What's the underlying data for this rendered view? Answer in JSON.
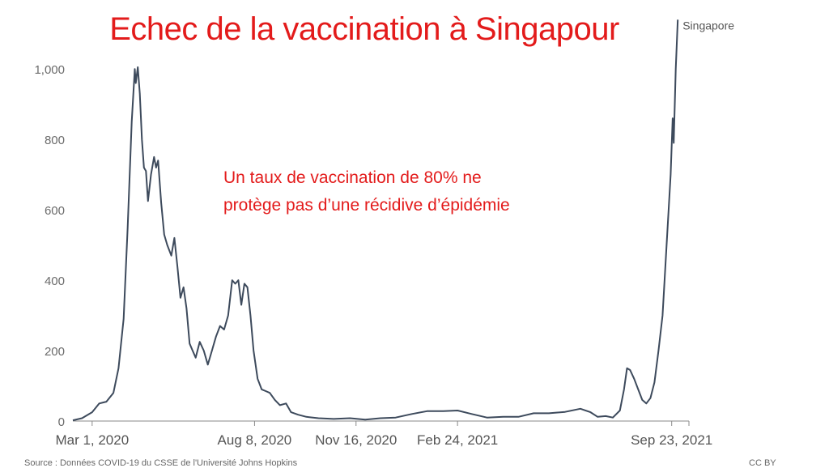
{
  "title": "Echec de la vaccination à Singapour",
  "annotation": {
    "line1": "Un taux de vaccination de 80% ne",
    "line2": "protège pas d’une récidive d’épidémie"
  },
  "footer": {
    "source": "Source : Données COVID-19 du CSSE de l'Université Johns Hopkins",
    "credit": "CC BY"
  },
  "chart_data": {
    "type": "line",
    "title": "Echec de la vaccination à Singapour",
    "xlabel": "",
    "ylabel": "",
    "ylim": [
      0,
      1150
    ],
    "yticks": [
      0,
      200,
      400,
      600,
      800,
      1000
    ],
    "ytick_labels": [
      "0",
      "200",
      "400",
      "600",
      "800",
      "1,000"
    ],
    "xlim": [
      "2020-02-11",
      "2021-10-10"
    ],
    "xticks": [
      "2020-03-01",
      "2020-08-08",
      "2020-11-16",
      "2021-02-24",
      "2021-09-23"
    ],
    "xtick_labels": [
      "Mar 1, 2020",
      "Aug 8, 2020",
      "Nov 16, 2020",
      "Feb 24, 2021",
      "Sep 23, 2021"
    ],
    "grid": false,
    "series": [
      {
        "name": "Singapore",
        "color": "#3d4a5c",
        "points": [
          [
            "2020-02-11",
            2
          ],
          [
            "2020-02-20",
            8
          ],
          [
            "2020-03-01",
            25
          ],
          [
            "2020-03-08",
            50
          ],
          [
            "2020-03-15",
            55
          ],
          [
            "2020-03-22",
            80
          ],
          [
            "2020-03-27",
            150
          ],
          [
            "2020-04-01",
            290
          ],
          [
            "2020-04-05",
            550
          ],
          [
            "2020-04-09",
            850
          ],
          [
            "2020-04-12",
            1000
          ],
          [
            "2020-04-13",
            960
          ],
          [
            "2020-04-15",
            1005
          ],
          [
            "2020-04-17",
            930
          ],
          [
            "2020-04-19",
            800
          ],
          [
            "2020-04-21",
            720
          ],
          [
            "2020-04-23",
            710
          ],
          [
            "2020-04-25",
            625
          ],
          [
            "2020-04-28",
            700
          ],
          [
            "2020-05-01",
            750
          ],
          [
            "2020-05-03",
            720
          ],
          [
            "2020-05-05",
            740
          ],
          [
            "2020-05-08",
            620
          ],
          [
            "2020-05-11",
            530
          ],
          [
            "2020-05-14",
            500
          ],
          [
            "2020-05-18",
            470
          ],
          [
            "2020-05-21",
            520
          ],
          [
            "2020-05-24",
            440
          ],
          [
            "2020-05-27",
            350
          ],
          [
            "2020-05-30",
            380
          ],
          [
            "2020-06-02",
            320
          ],
          [
            "2020-06-05",
            220
          ],
          [
            "2020-06-08",
            200
          ],
          [
            "2020-06-11",
            180
          ],
          [
            "2020-06-15",
            225
          ],
          [
            "2020-06-19",
            200
          ],
          [
            "2020-06-23",
            160
          ],
          [
            "2020-06-27",
            200
          ],
          [
            "2020-07-01",
            240
          ],
          [
            "2020-07-05",
            270
          ],
          [
            "2020-07-09",
            260
          ],
          [
            "2020-07-13",
            300
          ],
          [
            "2020-07-17",
            400
          ],
          [
            "2020-07-20",
            390
          ],
          [
            "2020-07-23",
            400
          ],
          [
            "2020-07-26",
            330
          ],
          [
            "2020-07-29",
            390
          ],
          [
            "2020-08-01",
            380
          ],
          [
            "2020-08-04",
            300
          ],
          [
            "2020-08-07",
            200
          ],
          [
            "2020-08-11",
            120
          ],
          [
            "2020-08-15",
            90
          ],
          [
            "2020-08-19",
            85
          ],
          [
            "2020-08-23",
            80
          ],
          [
            "2020-08-28",
            60
          ],
          [
            "2020-09-02",
            45
          ],
          [
            "2020-09-08",
            50
          ],
          [
            "2020-09-13",
            25
          ],
          [
            "2020-09-20",
            18
          ],
          [
            "2020-09-28",
            12
          ],
          [
            "2020-10-10",
            8
          ],
          [
            "2020-10-25",
            6
          ],
          [
            "2020-11-10",
            8
          ],
          [
            "2020-11-25",
            4
          ],
          [
            "2020-12-10",
            8
          ],
          [
            "2020-12-25",
            10
          ],
          [
            "2021-01-10",
            20
          ],
          [
            "2021-01-25",
            28
          ],
          [
            "2021-02-10",
            28
          ],
          [
            "2021-02-24",
            30
          ],
          [
            "2021-03-10",
            20
          ],
          [
            "2021-03-25",
            10
          ],
          [
            "2021-04-10",
            12
          ],
          [
            "2021-04-25",
            12
          ],
          [
            "2021-05-10",
            22
          ],
          [
            "2021-05-25",
            22
          ],
          [
            "2021-06-10",
            26
          ],
          [
            "2021-06-25",
            35
          ],
          [
            "2021-07-05",
            25
          ],
          [
            "2021-07-12",
            12
          ],
          [
            "2021-07-20",
            14
          ],
          [
            "2021-07-27",
            10
          ],
          [
            "2021-08-03",
            30
          ],
          [
            "2021-08-07",
            90
          ],
          [
            "2021-08-10",
            150
          ],
          [
            "2021-08-13",
            145
          ],
          [
            "2021-08-17",
            120
          ],
          [
            "2021-08-21",
            90
          ],
          [
            "2021-08-25",
            60
          ],
          [
            "2021-08-29",
            50
          ],
          [
            "2021-09-02",
            65
          ],
          [
            "2021-09-06",
            110
          ],
          [
            "2021-09-10",
            200
          ],
          [
            "2021-09-14",
            300
          ],
          [
            "2021-09-18",
            500
          ],
          [
            "2021-09-22",
            700
          ],
          [
            "2021-09-24",
            860
          ],
          [
            "2021-09-25",
            790
          ],
          [
            "2021-09-27",
            1000
          ],
          [
            "2021-09-29",
            1140
          ]
        ]
      }
    ]
  }
}
